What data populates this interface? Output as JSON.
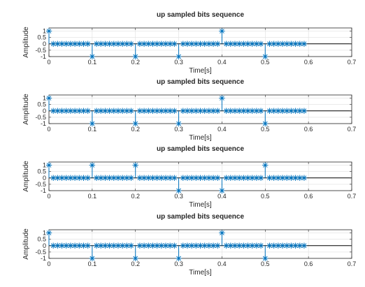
{
  "chart_data": [
    {
      "type": "stem",
      "title": "up sampled bits sequence",
      "xlabel": "Time[s]",
      "ylabel": "Amplitude",
      "xlim": [
        0,
        0.7
      ],
      "ylim": [
        -1,
        1.25
      ],
      "xticks": [
        "0",
        "0.1",
        "0.2",
        "0.3",
        "0.4",
        "0.5",
        "0.6",
        "0.7"
      ],
      "yticks": [
        "1",
        "0.5",
        "0",
        "-0.5",
        "-1"
      ],
      "grid": true,
      "upsample_factor": 10,
      "bit_period": 0.1,
      "bits": [
        1,
        -1,
        -1,
        -1,
        1,
        -1
      ],
      "marker": "asterisk",
      "color": "#0072BD"
    },
    {
      "type": "stem",
      "title": "up sampled bits sequence",
      "xlabel": "Time[s]",
      "ylabel": "Amplitude",
      "xlim": [
        0,
        0.7
      ],
      "ylim": [
        -1,
        1.25
      ],
      "xticks": [
        "0",
        "0.1",
        "0.2",
        "0.3",
        "0.4",
        "0.5",
        "0.6",
        "0.7"
      ],
      "yticks": [
        "1",
        "0.5",
        "0",
        "-0.5",
        "-1"
      ],
      "grid": true,
      "upsample_factor": 10,
      "bit_period": 0.1,
      "bits": [
        1,
        -1,
        -1,
        -1,
        1,
        -1
      ],
      "marker": "asterisk",
      "color": "#0072BD"
    },
    {
      "type": "stem",
      "title": "up sampled bits sequence",
      "xlabel": "Time[s]",
      "ylabel": "Amplitude",
      "xlim": [
        0,
        0.7
      ],
      "ylim": [
        -1,
        1.25
      ],
      "xticks": [
        "0",
        "0.1",
        "0.2",
        "0.3",
        "0.4",
        "0.5",
        "0.6",
        "0.7"
      ],
      "yticks": [
        "1",
        "0.5",
        "0",
        "-0.5",
        "-1"
      ],
      "grid": true,
      "upsample_factor": 10,
      "bit_period": 0.1,
      "bits": [
        1,
        1,
        1,
        -1,
        -1,
        1
      ],
      "marker": "asterisk",
      "color": "#0072BD"
    },
    {
      "type": "stem",
      "title": "up sampled bits sequence",
      "xlabel": "Time[s]",
      "ylabel": "Amplitude",
      "xlim": [
        0,
        0.7
      ],
      "ylim": [
        -1,
        1.25
      ],
      "xticks": [
        "0",
        "0.1",
        "0.2",
        "0.3",
        "0.4",
        "0.5",
        "0.6",
        "0.7"
      ],
      "yticks": [
        "1",
        "0.5",
        "0",
        "-0.5",
        "-1"
      ],
      "grid": true,
      "upsample_factor": 10,
      "bit_period": 0.1,
      "bits": [
        1,
        -1,
        -1,
        -1,
        1,
        -1
      ],
      "marker": "asterisk",
      "color": "#0072BD"
    }
  ]
}
